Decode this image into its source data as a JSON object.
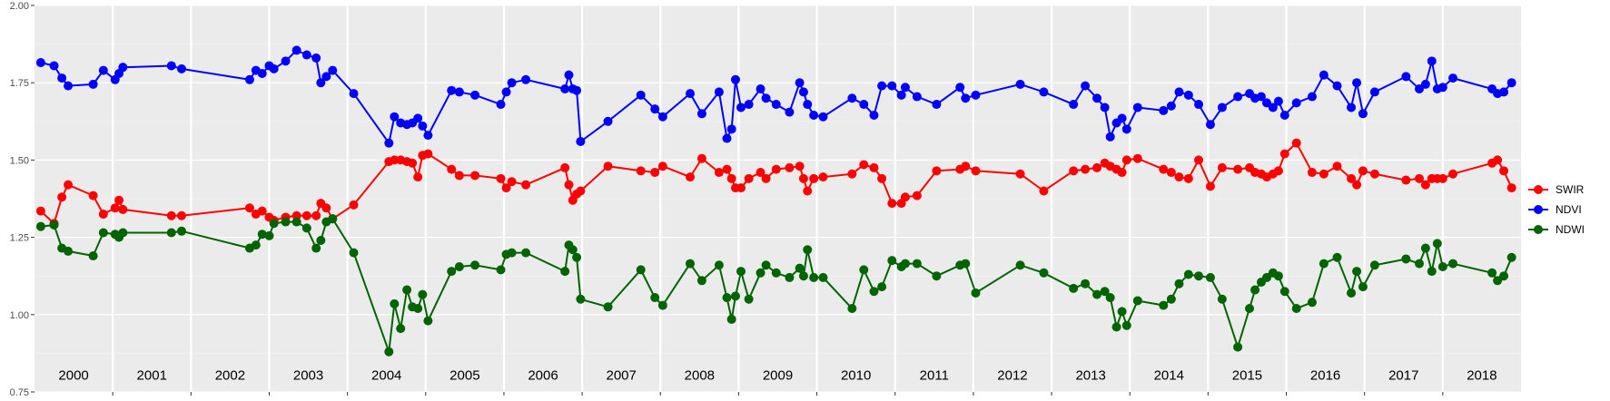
{
  "chart_data": {
    "type": "line",
    "title": "",
    "xlabel": "",
    "ylabel": "",
    "xlim": [
      1999.92,
      2018.92
    ],
    "ylim": [
      0.75,
      2.0
    ],
    "grid": true,
    "legend_position": "right",
    "y_ticks": [
      "0.75",
      "1.00",
      "1.25",
      "1.50",
      "1.75",
      "2.00"
    ],
    "y_tick_values": [
      0.75,
      1.0,
      1.25,
      1.5,
      1.75,
      2.0
    ],
    "year_labels": [
      "2000",
      "2001",
      "2002",
      "2003",
      "2004",
      "2005",
      "2006",
      "2007",
      "2008",
      "2009",
      "2010",
      "2011",
      "2012",
      "2013",
      "2014",
      "2015",
      "2016",
      "2017",
      "2018"
    ],
    "x": [
      2000.0,
      2000.17,
      2000.27,
      2000.35,
      2000.67,
      2000.8,
      2000.95,
      2001.0,
      2001.05,
      2001.67,
      2001.8,
      2002.67,
      2002.75,
      2002.83,
      2002.92,
      2002.98,
      2003.13,
      2003.27,
      2003.4,
      2003.52,
      2003.58,
      2003.65,
      2003.73,
      2004.0,
      2004.45,
      2004.52,
      2004.6,
      2004.68,
      2004.75,
      2004.82,
      2004.88,
      2004.95,
      2005.25,
      2005.35,
      2005.55,
      2005.88,
      2005.95,
      2006.02,
      2006.2,
      2006.7,
      2006.75,
      2006.8,
      2006.85,
      2006.9,
      2007.25,
      2007.67,
      2007.85,
      2007.95,
      2008.3,
      2008.45,
      2008.67,
      2008.77,
      2008.83,
      2008.88,
      2008.95,
      2009.05,
      2009.2,
      2009.27,
      2009.4,
      2009.57,
      2009.7,
      2009.75,
      2009.8,
      2009.88,
      2010.0,
      2010.37,
      2010.52,
      2010.65,
      2010.75,
      2010.88,
      2011.0,
      2011.05,
      2011.2,
      2011.45,
      2011.75,
      2011.82,
      2011.95,
      2012.52,
      2012.82,
      2013.2,
      2013.35,
      2013.5,
      2013.6,
      2013.67,
      2013.75,
      2013.82,
      2013.88,
      2014.02,
      2014.35,
      2014.45,
      2014.55,
      2014.67,
      2014.8,
      2014.95,
      2015.1,
      2015.3,
      2015.45,
      2015.52,
      2015.6,
      2015.67,
      2015.75,
      2015.82,
      2015.9,
      2016.05,
      2016.25,
      2016.4,
      2016.57,
      2016.75,
      2016.82,
      2016.9,
      2017.05,
      2017.45,
      2017.62,
      2017.7,
      2017.78,
      2017.85,
      2017.92,
      2018.05,
      2018.55,
      2018.62,
      2018.7,
      2018.8
    ],
    "series": [
      {
        "name": "SWIR",
        "color": "#ff0000",
        "values": [
          1.335,
          1.295,
          1.38,
          1.42,
          1.385,
          1.325,
          1.345,
          1.37,
          1.34,
          1.32,
          1.32,
          1.345,
          1.325,
          1.335,
          1.315,
          1.305,
          1.315,
          1.32,
          1.32,
          1.32,
          1.36,
          1.345,
          1.31,
          1.355,
          1.495,
          1.5,
          1.5,
          1.495,
          1.49,
          1.445,
          1.515,
          1.52,
          1.47,
          1.45,
          1.45,
          1.44,
          1.41,
          1.43,
          1.42,
          1.475,
          1.42,
          1.37,
          1.39,
          1.4,
          1.48,
          1.465,
          1.46,
          1.48,
          1.445,
          1.505,
          1.46,
          1.47,
          1.44,
          1.41,
          1.41,
          1.44,
          1.46,
          1.44,
          1.47,
          1.475,
          1.48,
          1.44,
          1.4,
          1.44,
          1.445,
          1.455,
          1.485,
          1.475,
          1.44,
          1.36,
          1.36,
          1.38,
          1.385,
          1.465,
          1.47,
          1.48,
          1.465,
          1.455,
          1.4,
          1.465,
          1.47,
          1.475,
          1.49,
          1.48,
          1.47,
          1.46,
          1.5,
          1.505,
          1.47,
          1.46,
          1.445,
          1.44,
          1.5,
          1.415,
          1.475,
          1.47,
          1.475,
          1.46,
          1.455,
          1.445,
          1.455,
          1.465,
          1.52,
          1.555,
          1.46,
          1.455,
          1.48,
          1.44,
          1.42,
          1.465,
          1.455,
          1.435,
          1.44,
          1.42,
          1.44,
          1.44,
          1.44,
          1.455,
          1.49,
          1.5,
          1.465,
          1.41
        ]
      },
      {
        "name": "NDVI",
        "color": "#0000ff",
        "values": [
          1.815,
          1.805,
          1.765,
          1.74,
          1.745,
          1.79,
          1.76,
          1.78,
          1.8,
          1.805,
          1.795,
          1.76,
          1.79,
          1.78,
          1.805,
          1.795,
          1.82,
          1.855,
          1.84,
          1.83,
          1.75,
          1.77,
          1.79,
          1.715,
          1.555,
          1.64,
          1.62,
          1.615,
          1.62,
          1.635,
          1.61,
          1.58,
          1.725,
          1.72,
          1.71,
          1.68,
          1.72,
          1.75,
          1.76,
          1.73,
          1.775,
          1.73,
          1.725,
          1.56,
          1.625,
          1.71,
          1.665,
          1.64,
          1.715,
          1.65,
          1.72,
          1.57,
          1.6,
          1.76,
          1.67,
          1.68,
          1.73,
          1.7,
          1.68,
          1.655,
          1.75,
          1.72,
          1.68,
          1.645,
          1.64,
          1.7,
          1.68,
          1.645,
          1.74,
          1.74,
          1.71,
          1.735,
          1.705,
          1.68,
          1.735,
          1.7,
          1.71,
          1.745,
          1.72,
          1.68,
          1.74,
          1.7,
          1.67,
          1.575,
          1.62,
          1.635,
          1.6,
          1.67,
          1.66,
          1.675,
          1.72,
          1.71,
          1.68,
          1.615,
          1.67,
          1.705,
          1.715,
          1.7,
          1.705,
          1.685,
          1.67,
          1.69,
          1.645,
          1.685,
          1.705,
          1.775,
          1.74,
          1.67,
          1.75,
          1.65,
          1.72,
          1.77,
          1.73,
          1.745,
          1.82,
          1.73,
          1.735,
          1.765,
          1.73,
          1.715,
          1.72,
          1.75
        ]
      },
      {
        "name": "NDWI",
        "color": "#006400",
        "values": [
          1.285,
          1.29,
          1.215,
          1.205,
          1.19,
          1.265,
          1.26,
          1.25,
          1.265,
          1.265,
          1.27,
          1.215,
          1.225,
          1.26,
          1.255,
          1.295,
          1.3,
          1.3,
          1.28,
          1.215,
          1.24,
          1.3,
          1.31,
          1.2,
          0.88,
          1.035,
          0.955,
          1.08,
          1.025,
          1.02,
          1.065,
          0.98,
          1.14,
          1.155,
          1.16,
          1.145,
          1.195,
          1.2,
          1.2,
          1.14,
          1.225,
          1.21,
          1.185,
          1.05,
          1.025,
          1.145,
          1.055,
          1.03,
          1.165,
          1.11,
          1.16,
          1.055,
          0.985,
          1.06,
          1.14,
          1.05,
          1.135,
          1.16,
          1.135,
          1.12,
          1.15,
          1.125,
          1.21,
          1.12,
          1.12,
          1.02,
          1.145,
          1.075,
          1.09,
          1.175,
          1.155,
          1.165,
          1.165,
          1.125,
          1.16,
          1.165,
          1.07,
          1.16,
          1.135,
          1.085,
          1.1,
          1.065,
          1.075,
          1.055,
          0.96,
          1.01,
          0.965,
          1.045,
          1.03,
          1.05,
          1.1,
          1.13,
          1.125,
          1.12,
          1.05,
          0.895,
          1.02,
          1.08,
          1.105,
          1.12,
          1.135,
          1.125,
          1.075,
          1.02,
          1.04,
          1.165,
          1.185,
          1.07,
          1.14,
          1.09,
          1.16,
          1.18,
          1.165,
          1.215,
          1.14,
          1.23,
          1.155,
          1.165,
          1.135,
          1.11,
          1.125,
          1.185
        ]
      }
    ]
  }
}
